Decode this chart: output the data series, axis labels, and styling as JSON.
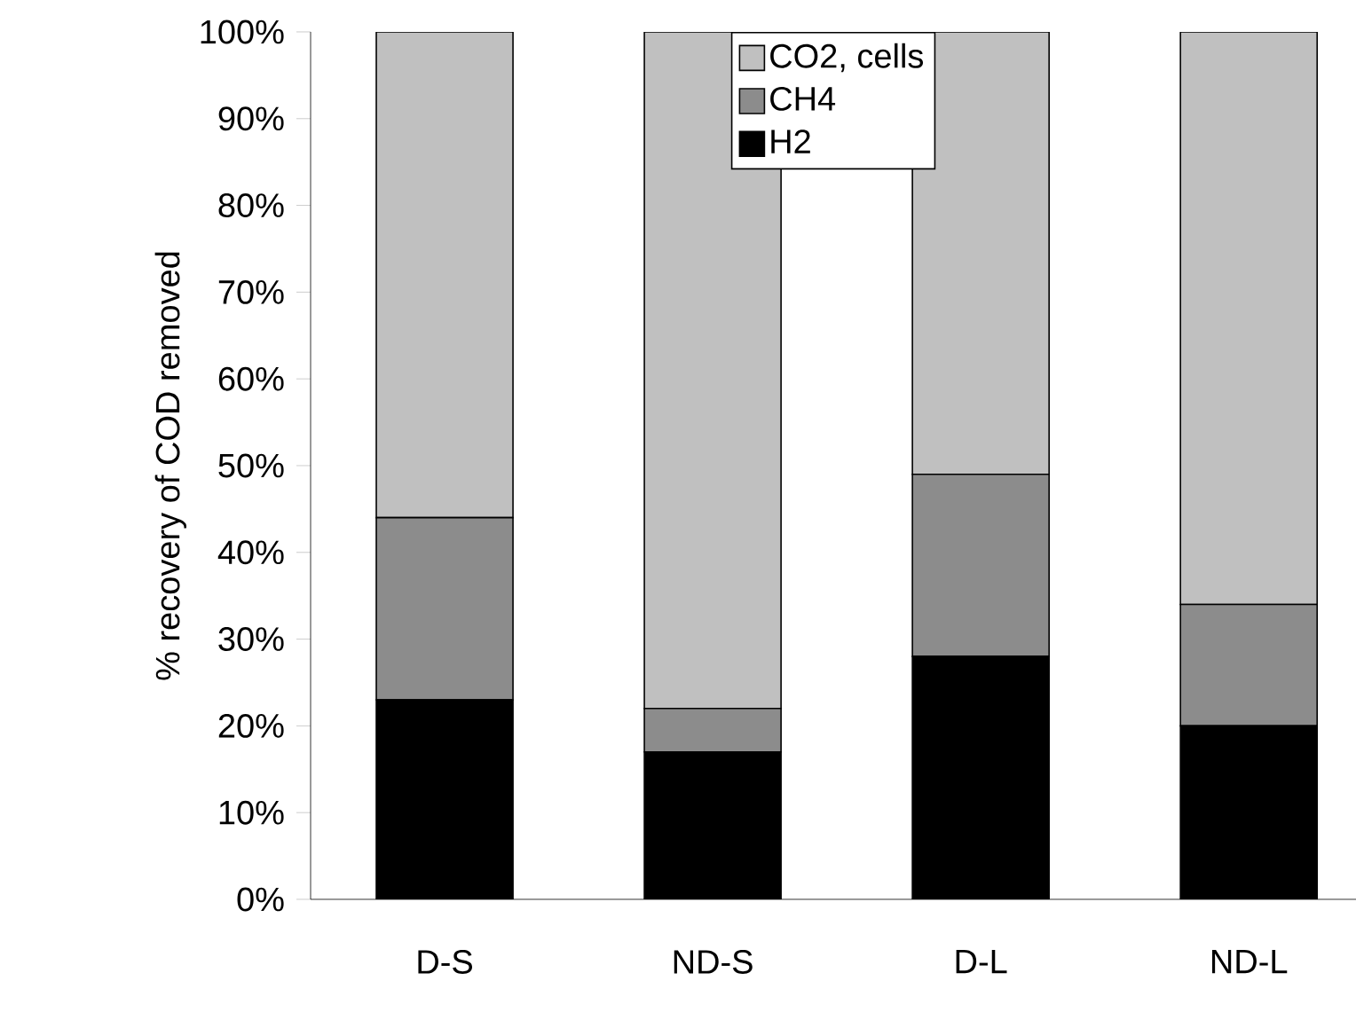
{
  "chart_data": {
    "type": "bar",
    "stacked": true,
    "ylabel": "% recovery of COD removed",
    "categories": [
      "D-S",
      "ND-S",
      "D-L",
      "ND-L"
    ],
    "series": [
      {
        "name": "H2",
        "color": "#000000",
        "values": [
          23,
          17,
          28,
          20
        ]
      },
      {
        "name": "CH4",
        "color": "#8c8c8c",
        "values": [
          21,
          5,
          21,
          14
        ]
      },
      {
        "name": "CO2, cells",
        "color": "#c0c0c0",
        "values": [
          56,
          78,
          51,
          66
        ]
      }
    ],
    "ylim": [
      0,
      100
    ],
    "yticks": [
      {
        "value": 0,
        "label": "0%"
      },
      {
        "value": 10,
        "label": "10%"
      },
      {
        "value": 20,
        "label": "20%"
      },
      {
        "value": 30,
        "label": "30%"
      },
      {
        "value": 40,
        "label": "40%"
      },
      {
        "value": 50,
        "label": "50%"
      },
      {
        "value": 60,
        "label": "60%"
      },
      {
        "value": 70,
        "label": "70%"
      },
      {
        "value": 80,
        "label": "80%"
      },
      {
        "value": 90,
        "label": "90%"
      },
      {
        "value": 100,
        "label": "100%"
      }
    ],
    "grid": false,
    "legend": "top"
  }
}
